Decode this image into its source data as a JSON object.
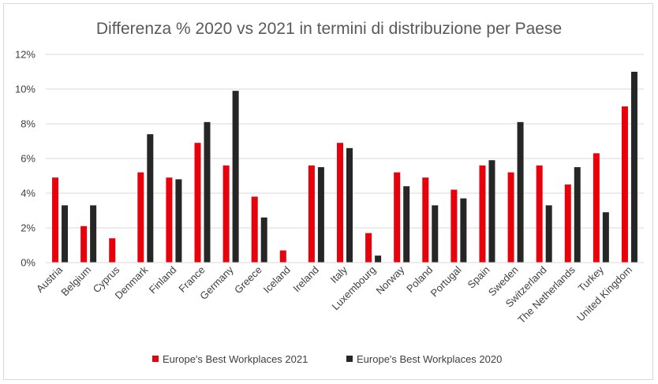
{
  "chart_data": {
    "type": "bar",
    "title": "Differenza % 2020 vs 2021 in termini di distribuzione per Paese",
    "xlabel": "",
    "ylabel": "",
    "ylim": [
      0,
      12
    ],
    "yticks": [
      "0%",
      "2%",
      "4%",
      "6%",
      "8%",
      "10%",
      "12%"
    ],
    "ytick_values": [
      0,
      2,
      4,
      6,
      8,
      10,
      12
    ],
    "grid": true,
    "legend_position": "bottom",
    "categories": [
      "Austria",
      "Belgium",
      "Cyprus",
      "Denmark",
      "Finland",
      "France",
      "Germany",
      "Greece",
      "Iceland",
      "Ireland",
      "Italy",
      "Luxembourg",
      "Norway",
      "Poland",
      "Portugal",
      "Spain",
      "Sweden",
      "Switzerland",
      "The Netherlands",
      "Turkey",
      "United Kingdom"
    ],
    "series": [
      {
        "name": "Europe's Best Workplaces 2021",
        "color": "#e8000b",
        "values": [
          4.9,
          2.1,
          1.4,
          5.2,
          4.9,
          6.9,
          5.6,
          3.8,
          0.7,
          5.6,
          6.9,
          1.7,
          5.2,
          4.9,
          4.2,
          5.6,
          5.2,
          5.6,
          4.5,
          6.3,
          9.0
        ]
      },
      {
        "name": "Europe's Best Workplaces 2020",
        "color": "#262626",
        "values": [
          3.3,
          3.3,
          0,
          7.4,
          4.8,
          8.1,
          9.9,
          2.6,
          0,
          5.5,
          6.6,
          0.4,
          4.4,
          3.3,
          3.7,
          5.9,
          8.1,
          3.3,
          5.5,
          2.9,
          11.0
        ]
      }
    ]
  }
}
